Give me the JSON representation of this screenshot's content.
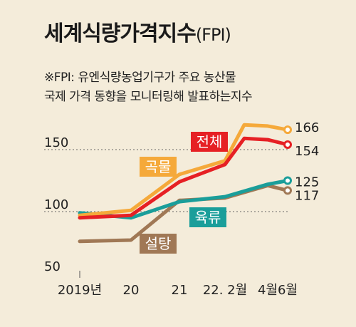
{
  "title": "세계식량가격지수",
  "title_suffix": "(FPI)",
  "note_line1": "※FPI: 유엔식량농업기구가 주요 농산물",
  "note_line2": "국제 가격 동향을 모니터링해 발표하는지수",
  "chart_data": {
    "type": "line",
    "x_ticks": [
      "2019년",
      "20",
      "21",
      "22. 2월",
      "4월",
      "6월"
    ],
    "y_ticks": [
      150,
      100,
      50
    ],
    "ylim": [
      50,
      172
    ],
    "grid": "dotted horizontal lines at 150 and 100",
    "series": [
      {
        "name": "전체",
        "color": "#e62024",
        "points": [
          {
            "x": "2019-01",
            "y": 95
          },
          {
            "x": "2020-01",
            "y": 97
          },
          {
            "x": "2021-01",
            "y": 124
          },
          {
            "x": "2022-01",
            "y": 138
          },
          {
            "x": "2022-03",
            "y": 159
          },
          {
            "x": "2022-04",
            "y": 158
          },
          {
            "x": "2022-06",
            "y": 154
          }
        ],
        "end_label": "154"
      },
      {
        "name": "곡물",
        "color": "#f5a93a",
        "points": [
          {
            "x": "2019-01",
            "y": 97
          },
          {
            "x": "2020-01",
            "y": 101
          },
          {
            "x": "2021-01",
            "y": 130
          },
          {
            "x": "2022-01",
            "y": 141
          },
          {
            "x": "2022-03",
            "y": 170
          },
          {
            "x": "2022-04",
            "y": 169
          },
          {
            "x": "2022-06",
            "y": 166
          }
        ],
        "end_label": "166"
      },
      {
        "name": "육류",
        "color": "#1a9e9a",
        "points": [
          {
            "x": "2019-01",
            "y": 99
          },
          {
            "x": "2020-01",
            "y": 95
          },
          {
            "x": "2021-01",
            "y": 108
          },
          {
            "x": "2022-01",
            "y": 112
          },
          {
            "x": "2022-04",
            "y": 122
          },
          {
            "x": "2022-06",
            "y": 125
          }
        ],
        "end_label": "125"
      },
      {
        "name": "설탕",
        "color": "#a07855",
        "points": [
          {
            "x": "2019-01",
            "y": 76
          },
          {
            "x": "2020-01",
            "y": 77
          },
          {
            "x": "2021-01",
            "y": 109
          },
          {
            "x": "2022-01",
            "y": 111
          },
          {
            "x": "2022-04",
            "y": 121
          },
          {
            "x": "2022-06",
            "y": 117
          }
        ],
        "end_label": "117"
      }
    ]
  }
}
